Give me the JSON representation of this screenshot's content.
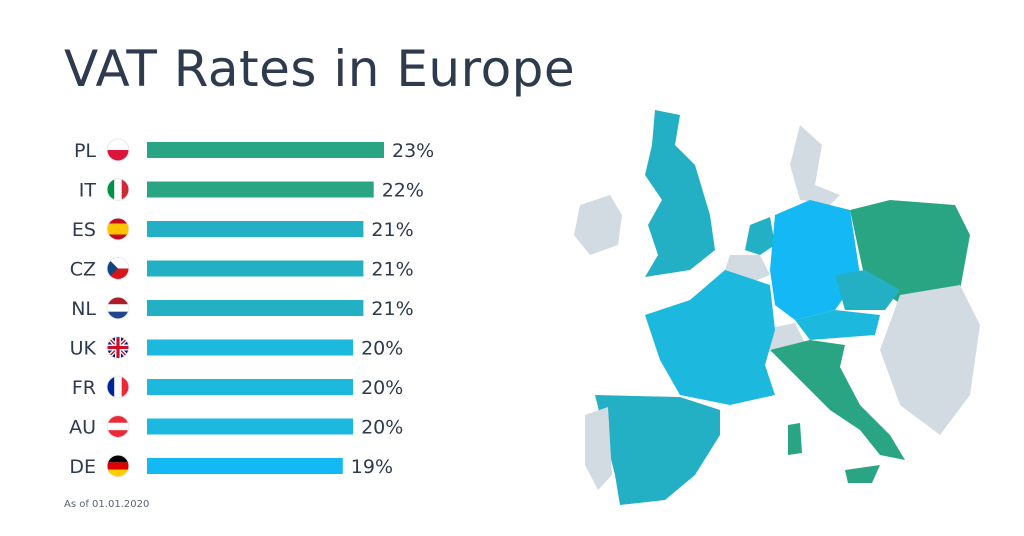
{
  "chart_data": {
    "type": "bar",
    "orientation": "horizontal",
    "title": "VAT Rates in Europe",
    "categories": [
      "PL",
      "IT",
      "ES",
      "CZ",
      "NL",
      "UK",
      "FR",
      "AU",
      "DE"
    ],
    "values": [
      23,
      22,
      21,
      21,
      21,
      20,
      20,
      20,
      19
    ],
    "value_labels": [
      "23%",
      "22%",
      "21%",
      "21%",
      "21%",
      "20%",
      "20%",
      "20%",
      "19%"
    ],
    "unit": "%",
    "xlim": [
      0,
      23
    ],
    "colors_by_value": {
      "23": "#2aa583",
      "22": "#2aa583",
      "21": "#23b0c4",
      "20": "#1cb8dd",
      "19": "#13b8f5"
    },
    "flags": [
      "poland-flag-icon",
      "italy-flag-icon",
      "spain-flag-icon",
      "czech-flag-icon",
      "netherlands-flag-icon",
      "uk-flag-icon",
      "france-flag-icon",
      "austria-flag-icon",
      "germany-flag-icon"
    ],
    "footnote": "As of 01.01.2020",
    "grid": false,
    "legend": "none"
  },
  "map": {
    "icon": "europe-map-icon",
    "colors": {
      "green": "#2aa583",
      "teal": "#23b0c4",
      "blue": "#13b8f5",
      "grey": "#d2dbe2"
    }
  }
}
